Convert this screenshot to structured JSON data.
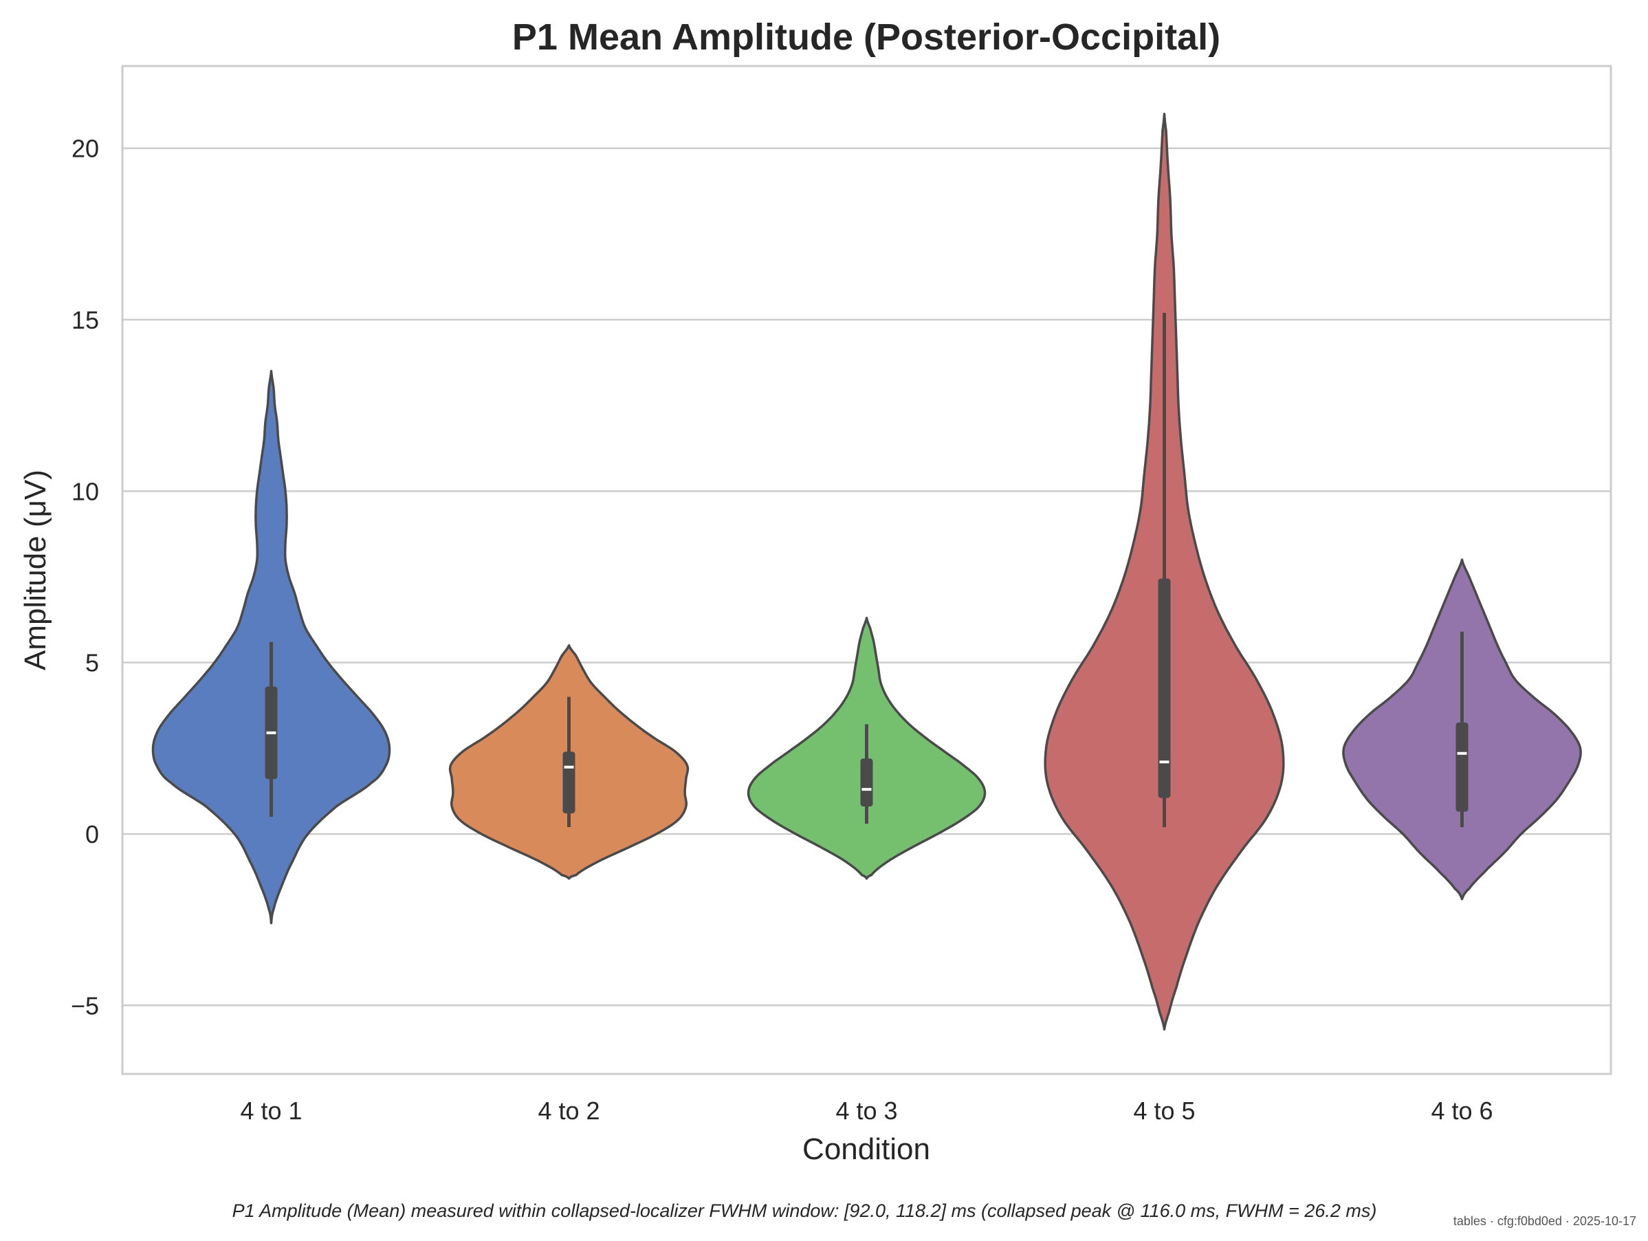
{
  "chart_data": {
    "type": "violin",
    "title": "P1 Mean Amplitude (Posterior-Occipital)",
    "xlabel": "Condition",
    "ylabel": "Amplitude (μV)",
    "ylim": [
      -7,
      22.4
    ],
    "yticks": [
      -5,
      0,
      5,
      10,
      15,
      20
    ],
    "ytick_labels": [
      "−5",
      "0",
      "5",
      "10",
      "15",
      "20"
    ],
    "grid": "horizontal",
    "categories": [
      "4 to 1",
      "4 to 2",
      "4 to 3",
      "4 to 5",
      "4 to 6"
    ],
    "series": [
      {
        "category": "4 to 1",
        "color": "#5a7dc0",
        "kde_min": -2.6,
        "kde_max": 13.5,
        "median": 2.95,
        "q1": 1.6,
        "q3": 4.3,
        "whisker_low": 0.5,
        "whisker_high": 5.6,
        "profile": [
          [
            -2.6,
            0
          ],
          [
            -2.2,
            0.02
          ],
          [
            -1.5,
            0.09
          ],
          [
            -0.8,
            0.18
          ],
          [
            0,
            0.31
          ],
          [
            0.8,
            0.55
          ],
          [
            1.5,
            0.85
          ],
          [
            2.0,
            0.97
          ],
          [
            2.5,
            1.0
          ],
          [
            3.0,
            0.96
          ],
          [
            3.5,
            0.86
          ],
          [
            4.0,
            0.73
          ],
          [
            4.5,
            0.6
          ],
          [
            5.0,
            0.48
          ],
          [
            5.5,
            0.38
          ],
          [
            6.0,
            0.29
          ],
          [
            6.5,
            0.24
          ],
          [
            7.0,
            0.2
          ],
          [
            7.5,
            0.15
          ],
          [
            8.0,
            0.12
          ],
          [
            8.5,
            0.12
          ],
          [
            9.0,
            0.13
          ],
          [
            9.5,
            0.13
          ],
          [
            10.0,
            0.12
          ],
          [
            10.5,
            0.1
          ],
          [
            11.0,
            0.08
          ],
          [
            11.5,
            0.06
          ],
          [
            12.0,
            0.05
          ],
          [
            12.5,
            0.03
          ],
          [
            13.0,
            0.02
          ],
          [
            13.5,
            0
          ]
        ]
      },
      {
        "category": "4 to 2",
        "color": "#d98a5a",
        "kde_min": -1.3,
        "kde_max": 5.5,
        "median": 1.95,
        "q1": 0.6,
        "q3": 2.4,
        "whisker_low": 0.2,
        "whisker_high": 4.0,
        "profile": [
          [
            -1.3,
            0
          ],
          [
            -1.2,
            0.06
          ],
          [
            -0.8,
            0.25
          ],
          [
            -0.4,
            0.5
          ],
          [
            0,
            0.74
          ],
          [
            0.4,
            0.92
          ],
          [
            0.8,
            0.99
          ],
          [
            1.2,
            0.98
          ],
          [
            1.6,
            0.99
          ],
          [
            2.0,
            1.0
          ],
          [
            2.4,
            0.9
          ],
          [
            2.8,
            0.72
          ],
          [
            3.2,
            0.56
          ],
          [
            3.6,
            0.42
          ],
          [
            4.0,
            0.3
          ],
          [
            4.4,
            0.19
          ],
          [
            4.8,
            0.12
          ],
          [
            5.2,
            0.06
          ],
          [
            5.5,
            0
          ]
        ]
      },
      {
        "category": "4 to 3",
        "color": "#75c06f",
        "kde_min": -1.3,
        "kde_max": 6.3,
        "median": 1.3,
        "q1": 0.8,
        "q3": 2.2,
        "whisker_low": 0.3,
        "whisker_high": 3.2,
        "profile": [
          [
            -1.3,
            0
          ],
          [
            -1.2,
            0.04
          ],
          [
            -0.8,
            0.18
          ],
          [
            -0.4,
            0.38
          ],
          [
            0,
            0.6
          ],
          [
            0.4,
            0.8
          ],
          [
            0.8,
            0.95
          ],
          [
            1.2,
            1.0
          ],
          [
            1.6,
            0.95
          ],
          [
            2.0,
            0.82
          ],
          [
            2.4,
            0.66
          ],
          [
            2.8,
            0.5
          ],
          [
            3.2,
            0.36
          ],
          [
            3.6,
            0.25
          ],
          [
            4.0,
            0.17
          ],
          [
            4.4,
            0.12
          ],
          [
            4.8,
            0.1
          ],
          [
            5.2,
            0.08
          ],
          [
            5.6,
            0.06
          ],
          [
            6.0,
            0.03
          ],
          [
            6.3,
            0
          ]
        ]
      },
      {
        "category": "4 to 5",
        "color": "#c66c6d",
        "kde_min": -5.7,
        "kde_max": 21.0,
        "median": 2.1,
        "q1": 1.05,
        "q3": 7.45,
        "whisker_low": 0.2,
        "whisker_high": 15.2,
        "profile": [
          [
            -5.7,
            0
          ],
          [
            -5.2,
            0.04
          ],
          [
            -4.5,
            0.1
          ],
          [
            -3.5,
            0.19
          ],
          [
            -2.5,
            0.3
          ],
          [
            -1.5,
            0.45
          ],
          [
            -0.5,
            0.65
          ],
          [
            0.5,
            0.87
          ],
          [
            1.5,
            0.99
          ],
          [
            2.5,
            1.0
          ],
          [
            3.5,
            0.92
          ],
          [
            4.5,
            0.78
          ],
          [
            5.5,
            0.6
          ],
          [
            6.5,
            0.45
          ],
          [
            7.5,
            0.34
          ],
          [
            8.5,
            0.26
          ],
          [
            9.5,
            0.2
          ],
          [
            10.5,
            0.17
          ],
          [
            11.5,
            0.14
          ],
          [
            12.5,
            0.12
          ],
          [
            13.5,
            0.11
          ],
          [
            14.5,
            0.1
          ],
          [
            15.5,
            0.09
          ],
          [
            16.5,
            0.08
          ],
          [
            17.5,
            0.06
          ],
          [
            18.5,
            0.05
          ],
          [
            19.5,
            0.03
          ],
          [
            20.5,
            0.015
          ],
          [
            21.0,
            0
          ]
        ]
      },
      {
        "category": "4 to 6",
        "color": "#9475ab",
        "kde_min": -1.9,
        "kde_max": 8.0,
        "median": 2.35,
        "q1": 0.65,
        "q3": 3.25,
        "whisker_low": 0.2,
        "whisker_high": 5.9,
        "profile": [
          [
            -1.9,
            0
          ],
          [
            -1.6,
            0.06
          ],
          [
            -1.0,
            0.22
          ],
          [
            -0.5,
            0.37
          ],
          [
            0,
            0.5
          ],
          [
            0.5,
            0.66
          ],
          [
            1.0,
            0.8
          ],
          [
            1.5,
            0.9
          ],
          [
            2.0,
            0.98
          ],
          [
            2.5,
            1.0
          ],
          [
            3.0,
            0.92
          ],
          [
            3.5,
            0.78
          ],
          [
            4.0,
            0.6
          ],
          [
            4.5,
            0.45
          ],
          [
            5.0,
            0.37
          ],
          [
            5.5,
            0.3
          ],
          [
            6.0,
            0.24
          ],
          [
            6.5,
            0.18
          ],
          [
            7.0,
            0.12
          ],
          [
            7.5,
            0.06
          ],
          [
            8.0,
            0
          ]
        ]
      }
    ],
    "caption": "P1 Amplitude (Mean) measured within collapsed-localizer FWHM window: [92.0, 118.2] ms (collapsed peak @ 116.0 ms, FWHM = 26.2 ms)",
    "footer": "tables · cfg:f0bd0ed · 2025-10-17"
  }
}
